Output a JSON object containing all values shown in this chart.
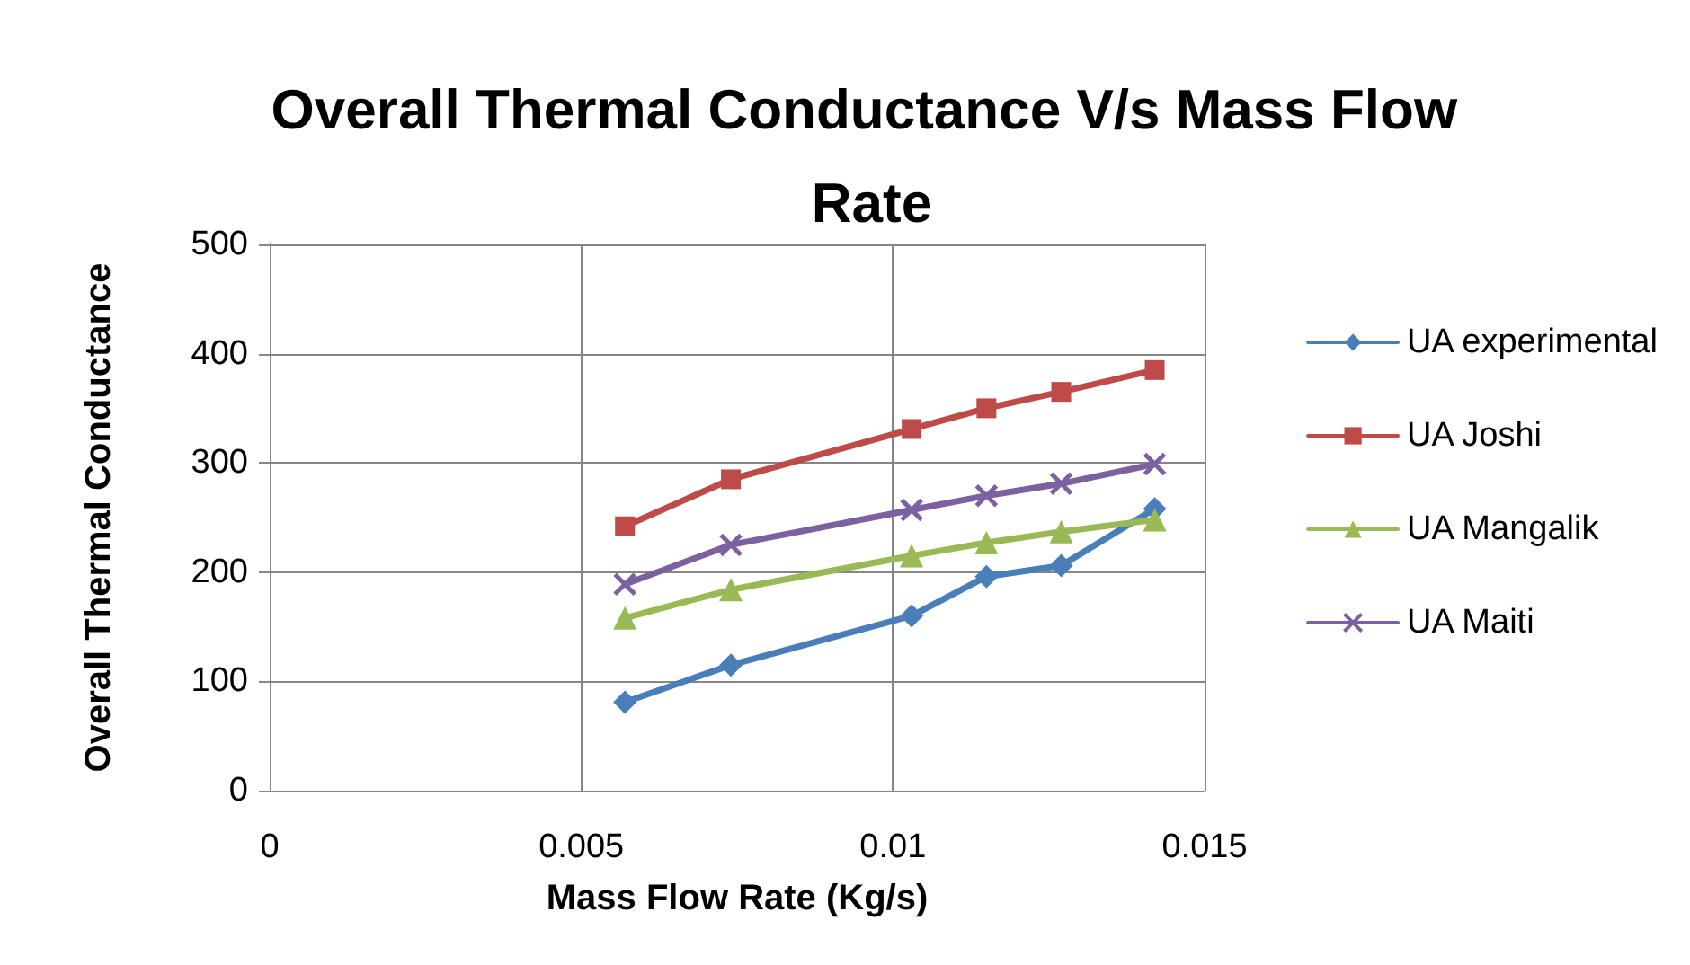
{
  "chart_data": {
    "type": "line",
    "title": "Overall Thermal Conductance V/s Mass Flow Rate",
    "xlabel": "Mass Flow Rate (Kg/s)",
    "ylabel": "Overall Thermal Conductance",
    "x": [
      0.0057,
      0.0074,
      0.0103,
      0.0115,
      0.0127,
      0.0142
    ],
    "series": [
      {
        "name": "UA experimental",
        "color": "#4a7ebb",
        "marker": "diamond",
        "values": [
          81,
          115,
          160,
          196,
          206,
          258
        ]
      },
      {
        "name": "UA Joshi",
        "color": "#be4b48",
        "marker": "square",
        "values": [
          242,
          285,
          331,
          350,
          365,
          385
        ]
      },
      {
        "name": "UA Mangalik",
        "color": "#98b954",
        "marker": "triangle",
        "values": [
          158,
          184,
          215,
          227,
          237,
          248
        ]
      },
      {
        "name": "UA Maiti",
        "color": "#7d60a0",
        "marker": "cross",
        "values": [
          189,
          225,
          257,
          270,
          281,
          299
        ]
      }
    ],
    "xlim": [
      0,
      0.015
    ],
    "xticks": [
      0,
      0.005,
      0.01,
      0.015
    ],
    "ylim": [
      0,
      500
    ],
    "yticks": [
      0,
      100,
      200,
      300,
      400,
      500
    ],
    "grid": true,
    "legend": "right",
    "line_style": "solid"
  }
}
